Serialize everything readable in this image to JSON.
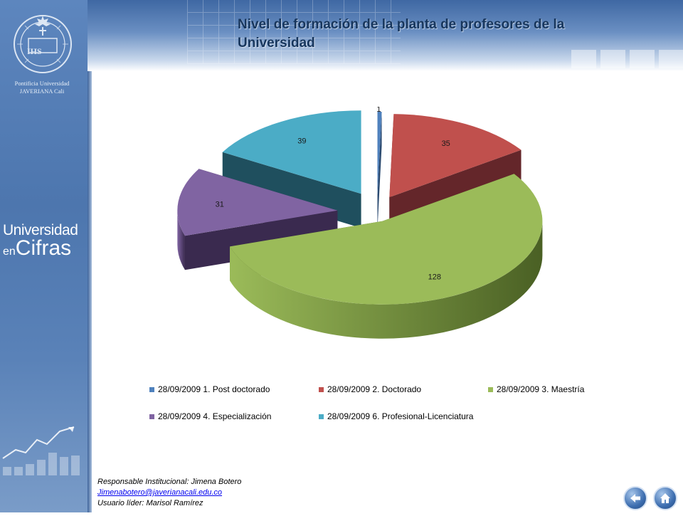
{
  "page": {
    "title": "Nivel de formación  de  la planta de  profesores de la Universidad",
    "logo_text": "Pontificia Universidad JAVERIANA Cali",
    "logo_monogram": "IHS",
    "brand_line1": "Universidad",
    "brand_line2_prefix": "en",
    "brand_line2": "Cifras"
  },
  "footer": {
    "responsable": "Responsable  Institucional: Jimena Botero",
    "email": "Jimenabotero@javerianacali.edu.co",
    "usuario": "Usuario líder: Marisol  Ramírez"
  },
  "nav": {
    "back": "back-arrow-icon",
    "home": "home-icon"
  },
  "colors": {
    "header": "#3f68a3",
    "sidebar": "#4d76ae",
    "title": "#17365d"
  },
  "chart_data": {
    "type": "pie",
    "title": "",
    "series": [
      {
        "name": "28/09/2009 1. Post doctorado",
        "value": 1,
        "color": "#4f81bd",
        "dark": "#2b4a70"
      },
      {
        "name": "28/09/2009 2. Doctorado",
        "value": 35,
        "color": "#c0504d",
        "dark": "#64262a"
      },
      {
        "name": "28/09/2009 3. Maestría",
        "value": 128,
        "color": "#9bbb59",
        "dark": "#4a6024"
      },
      {
        "name": "28/09/2009 4. Especialización",
        "value": 31,
        "color": "#8064a2",
        "dark": "#3a2a4f"
      },
      {
        "name": "28/09/2009 6. Profesional-Licenciatura",
        "value": 39,
        "color": "#4bacc6",
        "dark": "#1f4f5e"
      }
    ],
    "legend_position": "bottom",
    "style": "3d-exploded"
  }
}
